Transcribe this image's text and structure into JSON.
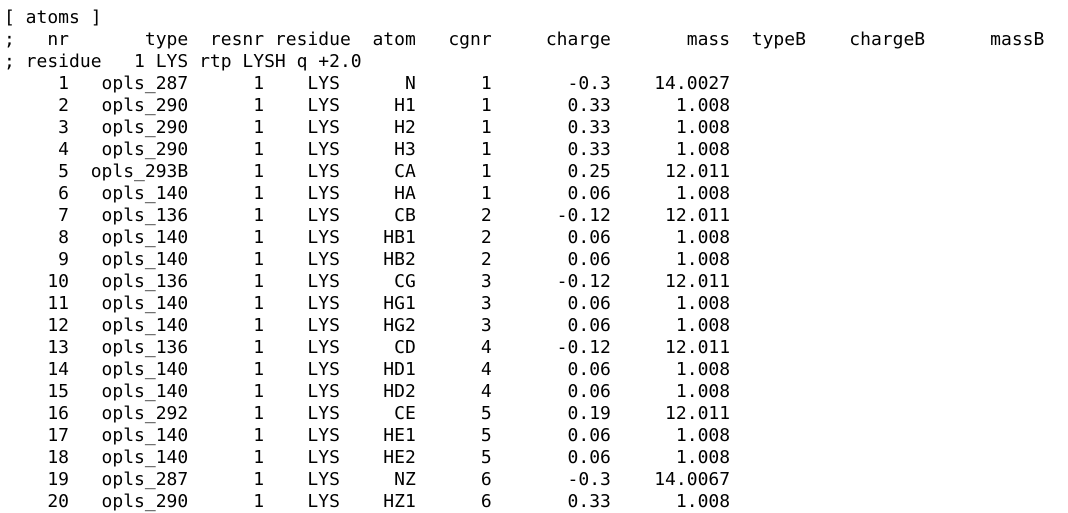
{
  "section_header": "[ atoms ]",
  "comment_columns": ";   nr       type  resnr residue  atom   cgnr     charge       mass  typeB    chargeB      massB",
  "comment_residue": "; residue   1 LYS rtp LYSH q +2.0",
  "rows": [
    "     1   opls_287      1    LYS      N      1       -0.3    14.0027",
    "     2   opls_290      1    LYS     H1      1       0.33      1.008",
    "     3   opls_290      1    LYS     H2      1       0.33      1.008",
    "     4   opls_290      1    LYS     H3      1       0.33      1.008",
    "     5  opls_293B      1    LYS     CA      1       0.25     12.011",
    "     6   opls_140      1    LYS     HA      1       0.06      1.008",
    "     7   opls_136      1    LYS     CB      2      -0.12     12.011",
    "     8   opls_140      1    LYS    HB1      2       0.06      1.008",
    "     9   opls_140      1    LYS    HB2      2       0.06      1.008",
    "    10   opls_136      1    LYS     CG      3      -0.12     12.011",
    "    11   opls_140      1    LYS    HG1      3       0.06      1.008",
    "    12   opls_140      1    LYS    HG2      3       0.06      1.008",
    "    13   opls_136      1    LYS     CD      4      -0.12     12.011",
    "    14   opls_140      1    LYS    HD1      4       0.06      1.008",
    "    15   opls_140      1    LYS    HD2      4       0.06      1.008",
    "    16   opls_292      1    LYS     CE      5       0.19     12.011",
    "    17   opls_140      1    LYS    HE1      5       0.06      1.008",
    "    18   opls_140      1    LYS    HE2      5       0.06      1.008",
    "    19   opls_287      1    LYS     NZ      6       -0.3    14.0067",
    "    20   opls_290      1    LYS    HZ1      6       0.33      1.008"
  ]
}
